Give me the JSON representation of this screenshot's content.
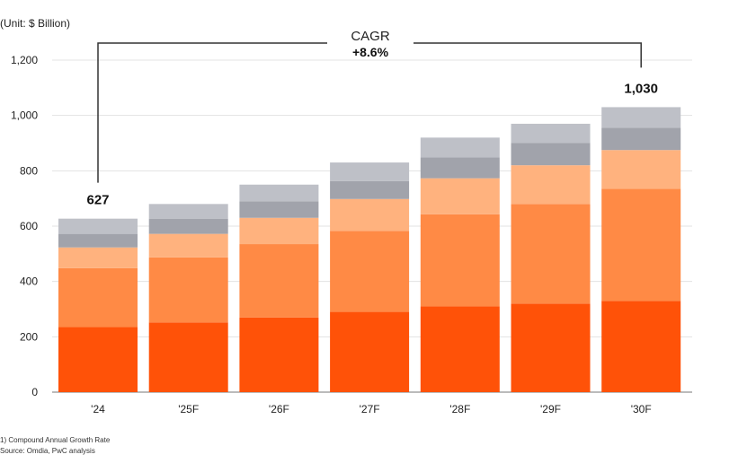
{
  "unit_label": "(Unit: $ Billion)",
  "footnotes": [
    "1) Compound Annual Growth Rate",
    "Source: Omdia, PwC analysis"
  ],
  "colors": {
    "seg1": "#FF5208",
    "seg2": "#FF8A45",
    "seg3": "#FFB27E",
    "seg4": "#A1A3AB",
    "seg5": "#BEC0C7",
    "gridline": "#E3E3E3",
    "axis": "#777777",
    "bracket": "#333333"
  },
  "chart_data": {
    "type": "bar",
    "stacked": true,
    "categories": [
      "'24",
      "'25F",
      "'26F",
      "'27F",
      "'28F",
      "'29F",
      "'30F"
    ],
    "series": [
      {
        "values": [
          235,
          252,
          270,
          290,
          310,
          320,
          330
        ]
      },
      {
        "values": [
          213,
          235,
          265,
          293,
          333,
          360,
          405
        ]
      },
      {
        "values": [
          75,
          85,
          95,
          115,
          130,
          140,
          140
        ]
      },
      {
        "values": [
          49,
          55,
          60,
          65,
          75,
          80,
          80
        ]
      },
      {
        "values": [
          55,
          53,
          60,
          67,
          72,
          70,
          75
        ]
      }
    ],
    "ylim": [
      0,
      1200
    ],
    "yticks": [
      0,
      200,
      400,
      600,
      800,
      1000,
      1200
    ],
    "ytick_labels": [
      "0",
      "200",
      "400",
      "600",
      "800",
      "1,000",
      "1,200"
    ],
    "grid": true,
    "total_labels": [
      {
        "index": 0,
        "text": "627"
      },
      {
        "index": 6,
        "text": "1,030"
      }
    ],
    "cagr": {
      "title": "CAGR",
      "value": "+8.6%"
    }
  }
}
